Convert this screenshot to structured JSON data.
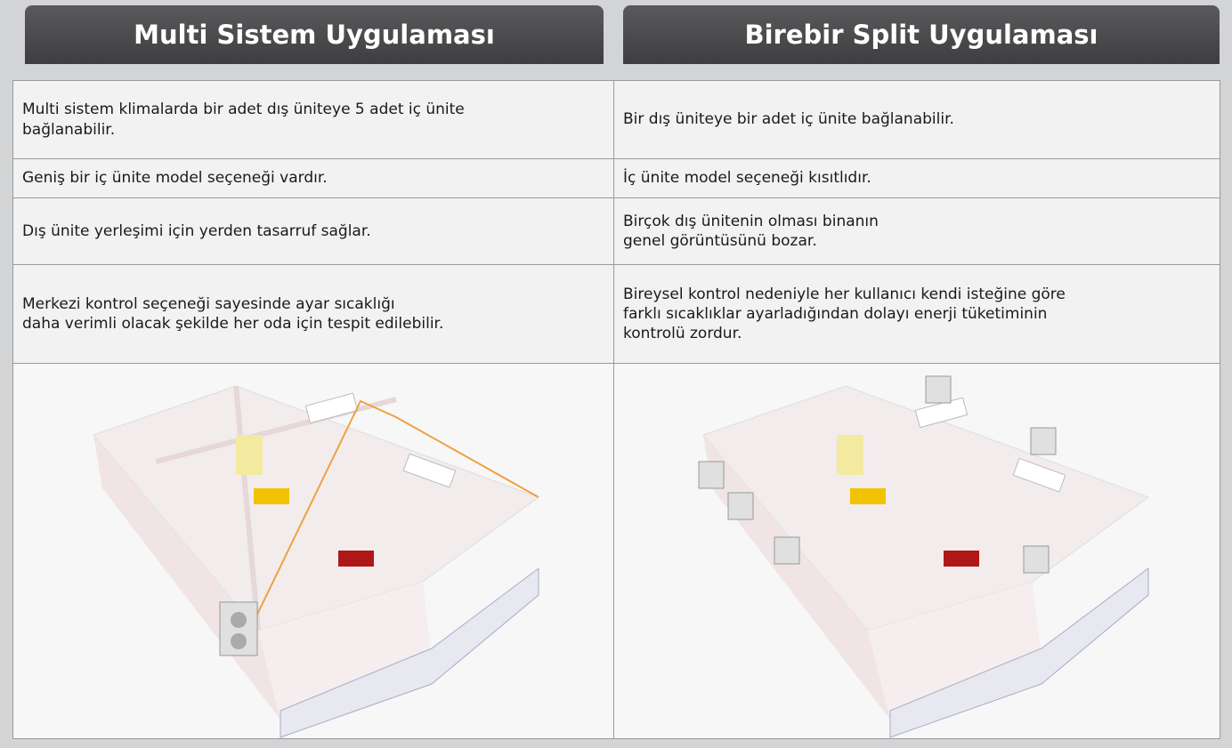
{
  "header": {
    "columns": [
      "Multi Sistem Uygulaması",
      "Birebir Split Uygulaması"
    ]
  },
  "table": {
    "rows": [
      [
        "Multi sistem klimalarda bir adet dış üniteye 5 adet iç ünite\nbağlanabilir.",
        "Bir dış üniteye bir adet iç ünite bağlanabilir."
      ],
      [
        "Geniş bir iç ünite model seçeneği vardır.",
        "İç ünite model seçeneği kısıtlıdır."
      ],
      [
        "Dış ünite yerleşimi için yerden tasarruf sağlar.",
        "Birçok dış ünitenin olması binanın\ngenel görüntüsünü bozar."
      ],
      [
        "Merkezi kontrol seçeneği sayesinde ayar sıcaklığı\ndaha verimli olacak şekilde her oda için tespit edilebilir.",
        "Bireysel kontrol nedeniyle her kullanıcı kendi isteğine göre\nfarklı sıcaklıklar ayarladığından dolayı enerji tüketiminin\nkontrolü zordur."
      ]
    ]
  }
}
